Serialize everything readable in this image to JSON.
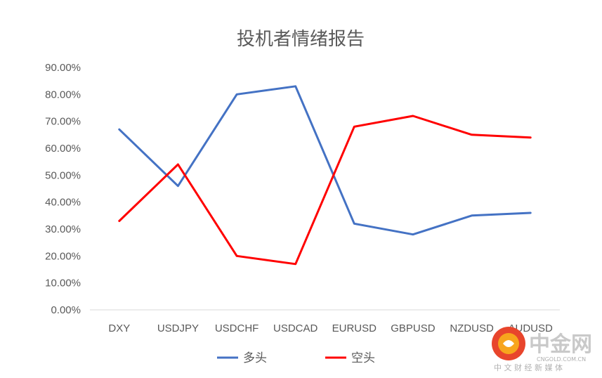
{
  "chart_data": {
    "type": "line",
    "title": "投机者情绪报告",
    "categories": [
      "DXY",
      "USDJPY",
      "USDCHF",
      "USDCAD",
      "EURUSD",
      "GBPUSD",
      "NZDUSD",
      "AUDUSD"
    ],
    "series": [
      {
        "name": "多头",
        "color": "#4472C4",
        "values": [
          67,
          46,
          80,
          83,
          32,
          28,
          35,
          36
        ]
      },
      {
        "name": "空头",
        "color": "#FF0000",
        "values": [
          33,
          54,
          20,
          17,
          68,
          72,
          65,
          64
        ]
      }
    ],
    "ylim": [
      0,
      90
    ],
    "yticks": [
      "0.00%",
      "10.00%",
      "20.00%",
      "30.00%",
      "40.00%",
      "50.00%",
      "60.00%",
      "70.00%",
      "80.00%",
      "90.00%"
    ],
    "grid": false,
    "legend": "bottom-center"
  },
  "watermark": {
    "name": "中金网",
    "domain": "CNGOLD.COM.CN",
    "tagline": "中 文 财 经 新 媒 体"
  }
}
